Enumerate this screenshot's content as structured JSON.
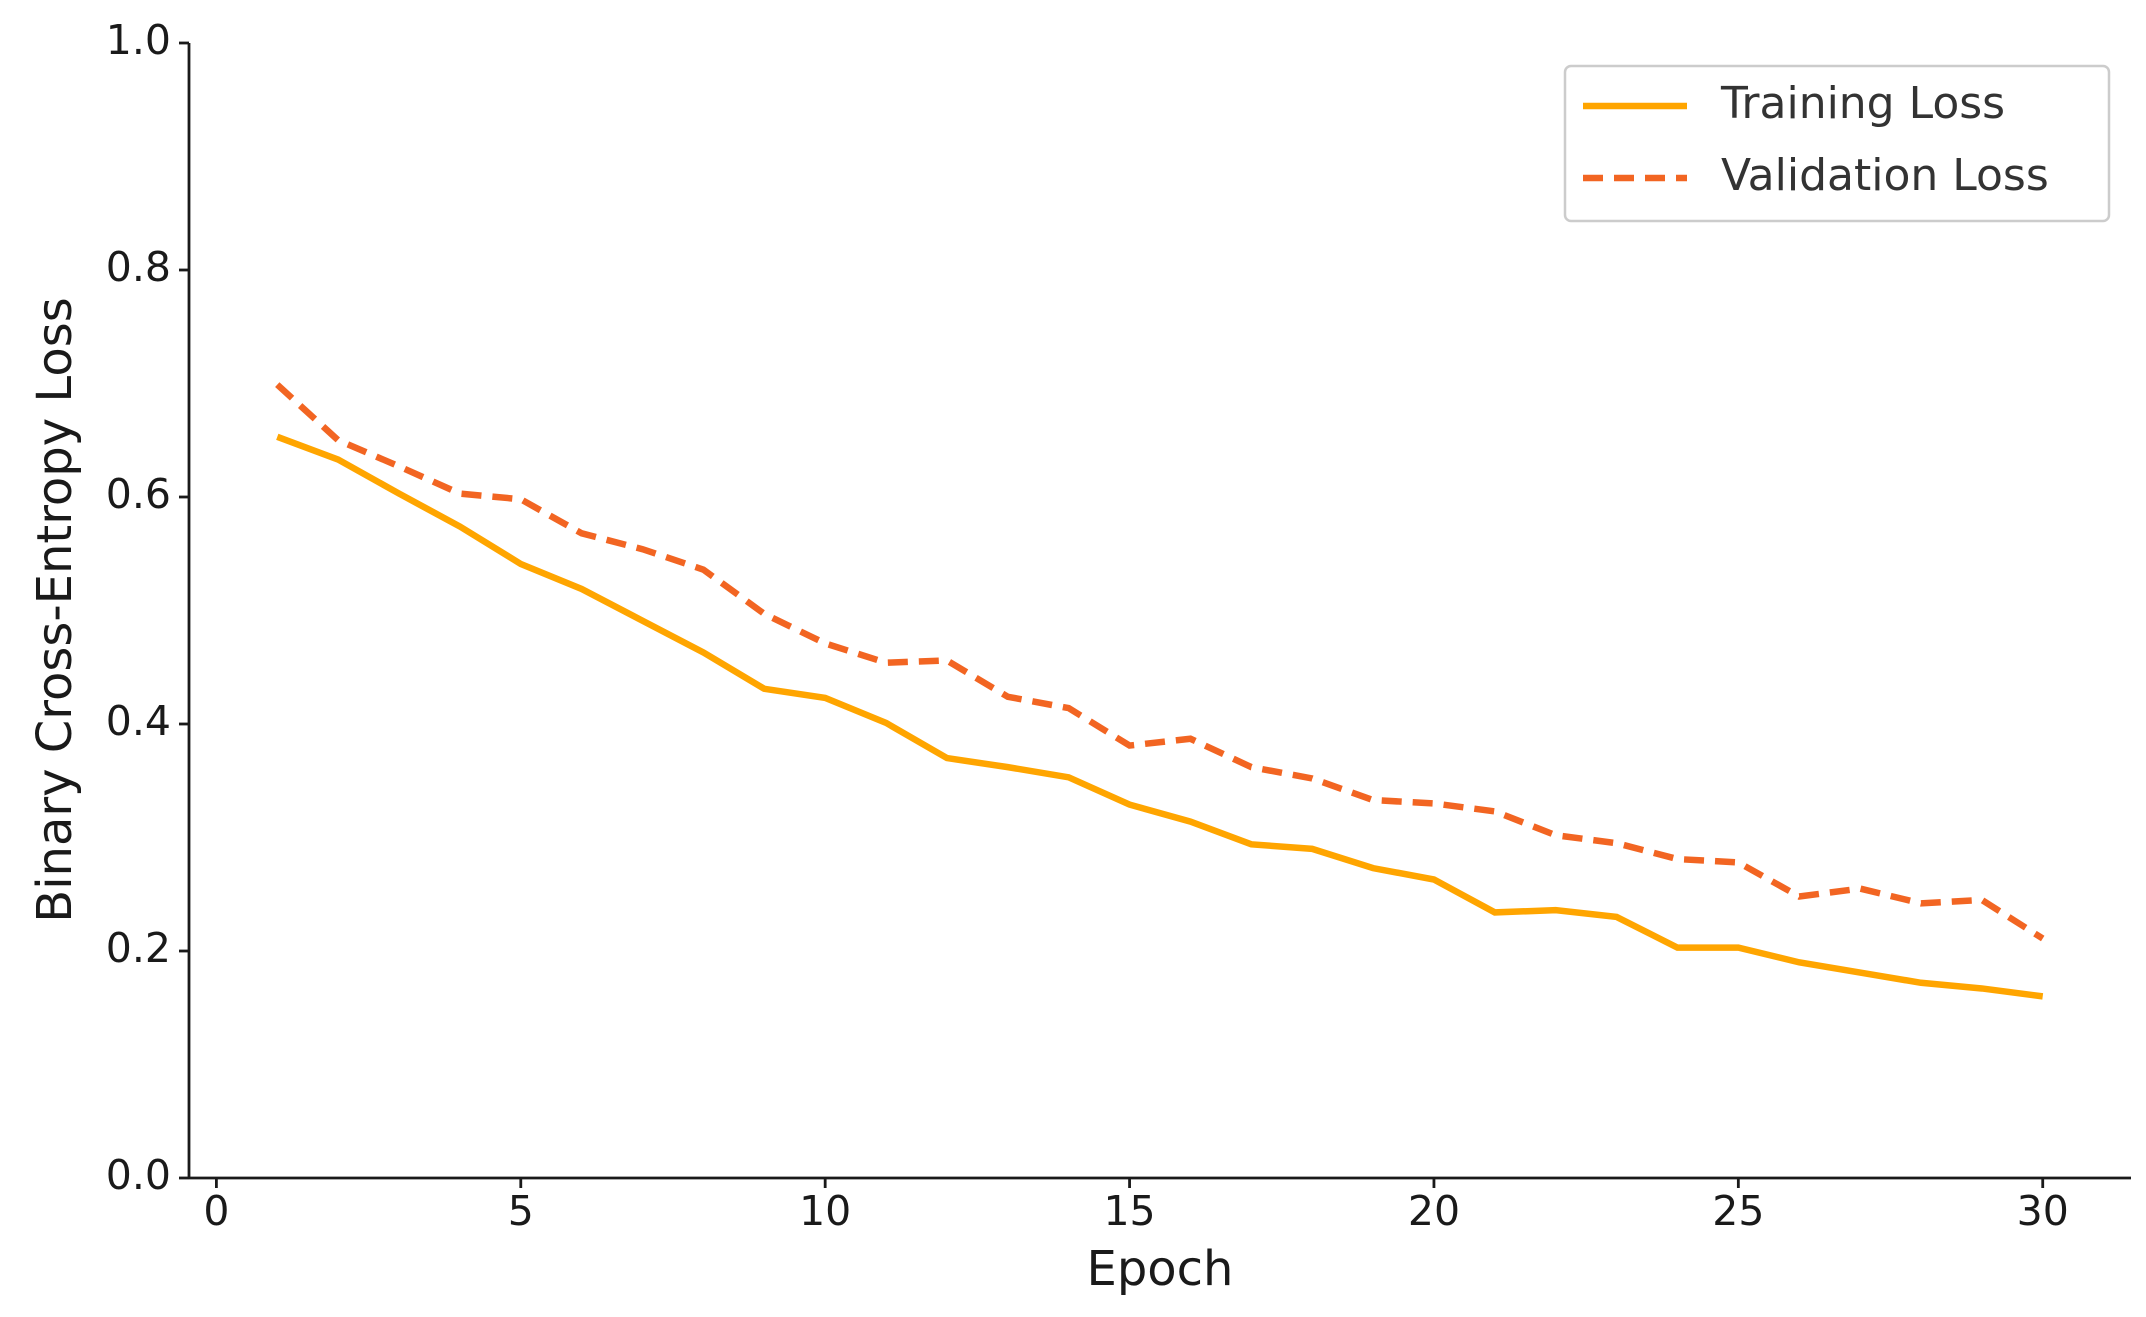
{
  "chart_data": {
    "type": "line",
    "xlabel": "Epoch",
    "ylabel": "Binary Cross-Entropy Loss",
    "x": [
      1,
      2,
      3,
      4,
      5,
      6,
      7,
      8,
      9,
      10,
      11,
      12,
      13,
      14,
      15,
      16,
      17,
      18,
      19,
      20,
      21,
      22,
      23,
      24,
      25,
      26,
      27,
      28,
      29,
      30
    ],
    "series": [
      {
        "name": "Training Loss",
        "color": "#ffa500",
        "dash": "solid",
        "values": [
          0.653,
          0.633,
          0.603,
          0.574,
          0.541,
          0.519,
          0.491,
          0.463,
          0.431,
          0.423,
          0.401,
          0.37,
          0.362,
          0.353,
          0.329,
          0.314,
          0.294,
          0.29,
          0.273,
          0.263,
          0.234,
          0.236,
          0.23,
          0.203,
          0.203,
          0.19,
          0.181,
          0.172,
          0.167,
          0.16
        ]
      },
      {
        "name": "Validation Loss",
        "color": "#f26522",
        "dash": "dashed",
        "values": [
          0.699,
          0.65,
          0.627,
          0.603,
          0.598,
          0.568,
          0.554,
          0.536,
          0.497,
          0.471,
          0.454,
          0.456,
          0.424,
          0.414,
          0.381,
          0.387,
          0.362,
          0.352,
          0.333,
          0.33,
          0.323,
          0.302,
          0.295,
          0.281,
          0.278,
          0.248,
          0.255,
          0.242,
          0.245,
          0.211
        ]
      }
    ],
    "xlim": [
      -0.45,
      31.45
    ],
    "xticks": [
      0,
      5,
      10,
      15,
      20,
      25,
      30
    ],
    "ylim": [
      0,
      1
    ],
    "yticks": [
      {
        "value": 0,
        "label": "0.0"
      },
      0.2,
      0.4,
      0.6,
      0.8,
      {
        "value": 1,
        "label": "1.0"
      }
    ],
    "grid": false,
    "legend": "upper right"
  }
}
